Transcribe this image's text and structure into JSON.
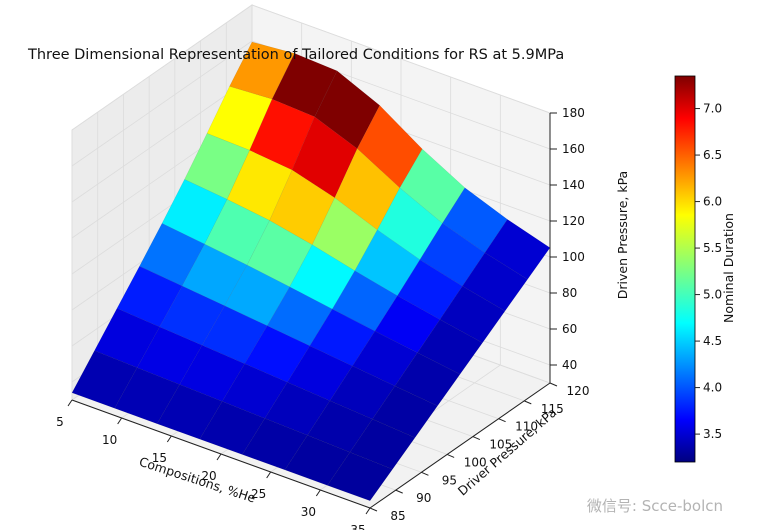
{
  "chart_data": {
    "type": "surface3d",
    "title": "Three Dimensional Representation of Tailored Conditions for RS at 5.9MPa",
    "xlabel": "Compositions, %He",
    "ylabel": "Driver Pressure, kPa",
    "zlabel": "Driven Pressure, kPa",
    "colorbar_label": "Nominal Duration",
    "colormap": "jet",
    "x_ticks": [
      "5",
      "10",
      "15",
      "20",
      "25",
      "30",
      "35"
    ],
    "y_ticks": [
      "85",
      "90",
      "95",
      "100",
      "105",
      "110",
      "115",
      "120"
    ],
    "z_ticks": [
      "40",
      "60",
      "80",
      "100",
      "120",
      "140",
      "160",
      "180"
    ],
    "colorbar_ticks": [
      "3.5",
      "4.0",
      "4.5",
      "5.0",
      "5.5",
      "6.0",
      "6.5",
      "7.0"
    ],
    "xlim": [
      5,
      35
    ],
    "ylim": [
      85,
      120
    ],
    "zlim": [
      30,
      180
    ],
    "colorbar_range": [
      3.2,
      7.35
    ],
    "grid": true
  },
  "watermark": "微信号: Scce-bolcn"
}
